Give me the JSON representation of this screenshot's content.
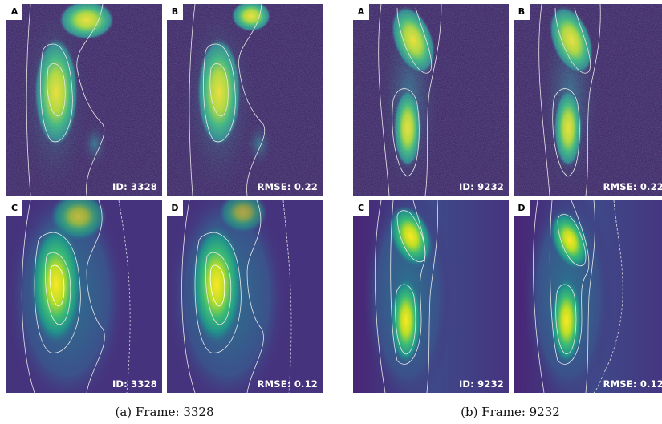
{
  "captions": {
    "a": "(a) Frame: 3328",
    "b": "(b) Frame: 9232"
  },
  "colormap": "viridis",
  "frames": [
    {
      "panels": [
        {
          "letter": "A",
          "tag": "ID: 3328"
        },
        {
          "letter": "B",
          "tag": "RMSE: 0.22"
        },
        {
          "letter": "C",
          "tag": "ID: 3328"
        },
        {
          "letter": "D",
          "tag": "RMSE: 0.12"
        }
      ]
    },
    {
      "panels": [
        {
          "letter": "A",
          "tag": "ID: 9232"
        },
        {
          "letter": "B",
          "tag": "RMSE: 0.22"
        },
        {
          "letter": "C",
          "tag": "ID: 9232"
        },
        {
          "letter": "D",
          "tag": "RMSE: 0.12"
        }
      ]
    }
  ]
}
